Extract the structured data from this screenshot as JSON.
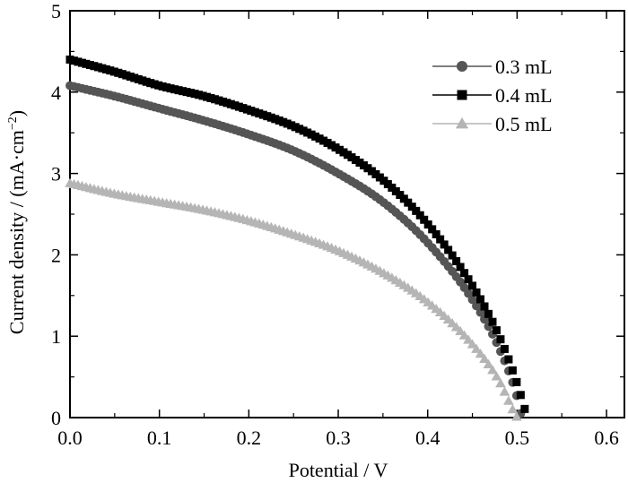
{
  "chart_data": {
    "type": "scatter",
    "xlabel": "Potential / V",
    "ylabel_main": "Current density / (mA·cm",
    "ylabel_sup": "−2",
    "ylabel_close": ")",
    "xlim": [
      0,
      0.62
    ],
    "ylim": [
      0,
      5
    ],
    "x_ticks": [
      "0.0",
      "0.1",
      "0.2",
      "0.3",
      "0.4",
      "0.5",
      "0.6"
    ],
    "y_ticks": [
      "0",
      "1",
      "2",
      "3",
      "4",
      "5"
    ],
    "grid": false,
    "legend_position": "top-right",
    "series": [
      {
        "name": "0.3 mL",
        "marker": "circle",
        "color": "#555555",
        "points": [
          [
            0.0,
            4.08
          ],
          [
            0.05,
            3.95
          ],
          [
            0.1,
            3.8
          ],
          [
            0.15,
            3.65
          ],
          [
            0.2,
            3.48
          ],
          [
            0.25,
            3.28
          ],
          [
            0.3,
            3.0
          ],
          [
            0.35,
            2.65
          ],
          [
            0.4,
            2.15
          ],
          [
            0.45,
            1.45
          ],
          [
            0.48,
            0.85
          ],
          [
            0.5,
            0.25
          ],
          [
            0.505,
            0.0
          ]
        ]
      },
      {
        "name": "0.4 mL",
        "marker": "square",
        "color": "#000000",
        "points": [
          [
            0.0,
            4.4
          ],
          [
            0.05,
            4.25
          ],
          [
            0.1,
            4.08
          ],
          [
            0.15,
            3.95
          ],
          [
            0.2,
            3.78
          ],
          [
            0.25,
            3.58
          ],
          [
            0.3,
            3.3
          ],
          [
            0.35,
            2.92
          ],
          [
            0.4,
            2.38
          ],
          [
            0.45,
            1.62
          ],
          [
            0.48,
            1.0
          ],
          [
            0.5,
            0.42
          ],
          [
            0.51,
            0.05
          ]
        ]
      },
      {
        "name": "0.5 mL",
        "marker": "triangle",
        "color": "#b5b5b5",
        "points": [
          [
            0.0,
            2.88
          ],
          [
            0.05,
            2.75
          ],
          [
            0.1,
            2.65
          ],
          [
            0.15,
            2.55
          ],
          [
            0.2,
            2.42
          ],
          [
            0.25,
            2.25
          ],
          [
            0.3,
            2.05
          ],
          [
            0.35,
            1.78
          ],
          [
            0.4,
            1.42
          ],
          [
            0.45,
            0.9
          ],
          [
            0.48,
            0.45
          ],
          [
            0.495,
            0.1
          ],
          [
            0.5,
            0.0
          ]
        ]
      }
    ]
  }
}
